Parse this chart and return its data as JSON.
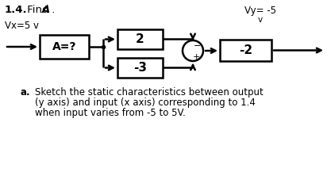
{
  "title_bold": "1.4.",
  "title_rest": " Find ",
  "title_italic": "A",
  "title_dot": " .",
  "vx_label": "Vx=5 v",
  "vy_label": "Vy= -5",
  "vy_unit": "v",
  "block_A": "A=?",
  "block_2": "2",
  "block_3": "-3",
  "block_out": "-2",
  "text_a_label": "a.",
  "text_line1": "Sketch the static characteristics between output",
  "text_line2": "(y axis) and input (x axis) corresponding to 1.4",
  "text_line3": "when input varies from -5 to 5V.",
  "bg_color": "#ffffff",
  "box_color": "#000000",
  "text_color": "#000000",
  "line_color": "#000000"
}
